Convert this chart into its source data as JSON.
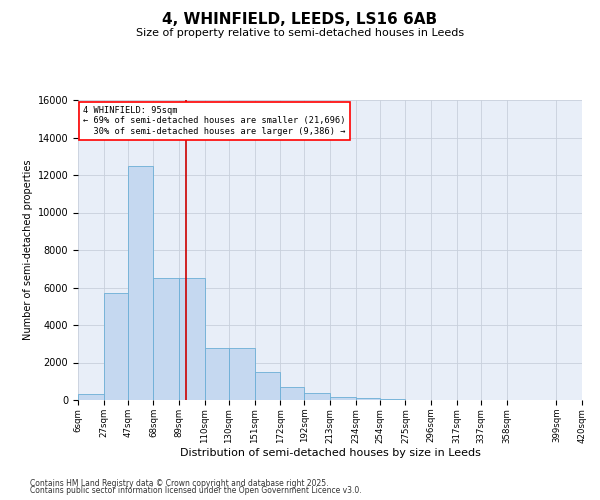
{
  "title": "4, WHINFIELD, LEEDS, LS16 6AB",
  "subtitle": "Size of property relative to semi-detached houses in Leeds",
  "xlabel": "Distribution of semi-detached houses by size in Leeds",
  "ylabel": "Number of semi-detached properties",
  "property_label": "4 WHINFIELD: 95sqm",
  "smaller_pct": "69%",
  "smaller_count": "21,696",
  "larger_pct": "30%",
  "larger_count": "9,386",
  "property_size": 95,
  "bin_edges": [
    6,
    27,
    47,
    68,
    89,
    110,
    130,
    151,
    172,
    192,
    213,
    234,
    254,
    275,
    296,
    317,
    337,
    358,
    399,
    420
  ],
  "bin_labels": [
    "6sqm",
    "27sqm",
    "47sqm",
    "68sqm",
    "89sqm",
    "110sqm",
    "130sqm",
    "151sqm",
    "172sqm",
    "192sqm",
    "213sqm",
    "234sqm",
    "254sqm",
    "275sqm",
    "296sqm",
    "317sqm",
    "337sqm",
    "358sqm",
    "399sqm",
    "420sqm"
  ],
  "bar_values": [
    300,
    5700,
    12500,
    6500,
    6500,
    2800,
    2800,
    1500,
    700,
    400,
    150,
    100,
    50,
    20,
    10,
    5,
    5,
    3,
    2,
    0
  ],
  "bar_color": "#c5d8f0",
  "bar_edgecolor": "#6baed6",
  "vline_color": "#cc0000",
  "vline_x": 95,
  "ylim": [
    0,
    16000
  ],
  "yticks": [
    0,
    2000,
    4000,
    6000,
    8000,
    10000,
    12000,
    14000,
    16000
  ],
  "grid_color": "#c8d0dc",
  "background_color": "#e8eef8",
  "footnote1": "Contains HM Land Registry data © Crown copyright and database right 2025.",
  "footnote2": "Contains public sector information licensed under the Open Government Licence v3.0."
}
